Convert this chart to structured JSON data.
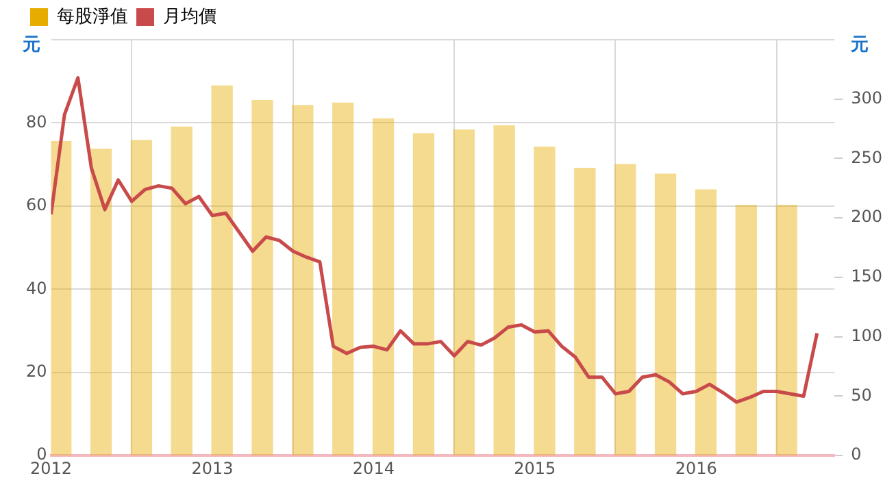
{
  "chart_data": {
    "type": "bar",
    "ylabel": "元",
    "y2label": "元",
    "x": [
      "2012-01-23",
      "2012-04-23",
      "2012-07-23",
      "2012-10-23",
      "2013-01-23",
      "2013-04-23",
      "2013-07-23",
      "2013-10-23",
      "2014-01-23",
      "2014-04-23",
      "2014-07-23",
      "2014-10-23",
      "2015-01-23",
      "2015-04-23",
      "2015-07-23",
      "2015-10-23",
      "2016-01-23",
      "2016-04-23",
      "2016-07-23"
    ],
    "xlim": [
      "2012-01",
      "2016-11-10"
    ],
    "xticks": [
      "2012",
      "2013",
      "2014",
      "2015",
      "2016"
    ],
    "ylim": [
      0,
      100
    ],
    "yticks": [
      0,
      20,
      40,
      60,
      80,
      {
        "value": 100,
        "label": null
      }
    ],
    "y2lim": [
      0,
      350
    ],
    "y2ticks": [
      0,
      50,
      100,
      150,
      200,
      250,
      300
    ],
    "grid": true,
    "legend": "top left",
    "series": [
      {
        "name": "每股淨值",
        "color": "#e6ac00",
        "values": [
          75.5,
          73.7,
          75.8,
          79,
          88.9,
          85.4,
          84.2,
          84.8,
          81,
          77.4,
          78.3,
          79.3,
          74.2,
          69.1,
          70,
          67.7,
          63.9,
          60.2,
          60.2
        ]
      },
      {
        "name": "月均價",
        "type": "line",
        "axis": "y2",
        "color": "#c94a4a",
        "x": [
          "2012-01",
          "2012-02",
          "2012-03",
          "2012-04",
          "2012-05",
          "2012-06",
          "2012-07",
          "2012-08",
          "2012-09",
          "2012-10",
          "2012-11",
          "2012-12",
          "2013-01",
          "2013-02",
          "2013-03",
          "2013-04",
          "2013-05",
          "2013-06",
          "2013-07",
          "2013-08",
          "2013-09",
          "2013-10",
          "2013-11",
          "2013-12",
          "2014-01",
          "2014-02",
          "2014-03",
          "2014-04",
          "2014-05",
          "2014-06",
          "2014-07",
          "2014-08",
          "2014-09",
          "2014-10",
          "2014-11",
          "2014-12",
          "2015-01",
          "2015-02",
          "2015-03",
          "2015-04",
          "2015-05",
          "2015-06",
          "2015-07",
          "2015-08",
          "2015-09",
          "2015-10",
          "2015-11",
          "2015-12",
          "2016-01",
          "2016-02",
          "2016-03",
          "2016-04",
          "2016-05",
          "2016-06",
          "2016-07",
          "2016-08",
          "2016-09",
          "2016-10"
        ],
        "values": [
          203,
          287,
          318,
          242,
          207,
          232,
          214,
          224,
          227,
          225,
          212,
          218,
          202,
          204,
          188,
          172,
          184,
          181,
          172,
          167,
          163,
          92,
          86,
          91,
          92,
          89,
          105,
          94,
          94,
          96,
          84,
          96,
          93,
          99,
          108,
          110,
          104,
          105,
          92,
          83,
          66,
          66,
          52,
          54,
          66,
          68,
          62,
          52,
          54,
          60,
          53,
          45,
          49,
          54,
          54,
          52,
          50,
          103
        ]
      }
    ]
  }
}
